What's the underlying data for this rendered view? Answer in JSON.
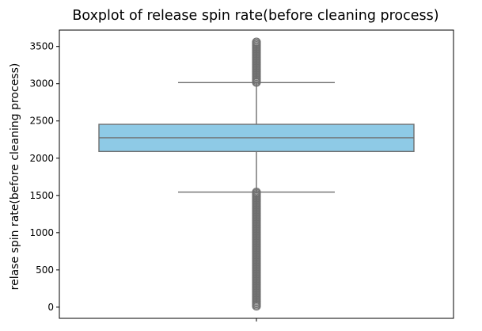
{
  "chart_data": {
    "type": "boxplot",
    "title": "Boxplot of release spin rate(before cleaning process)",
    "xlabel": "",
    "ylabel": "relase spin rate(before cleaning process)",
    "ylim": [
      -150,
      3720
    ],
    "yticks": [
      0,
      500,
      1000,
      1500,
      2000,
      2500,
      3000,
      3500
    ],
    "ytick_labels": [
      "0",
      "500",
      "1000",
      "1500",
      "2000",
      "2500",
      "3000",
      "3500"
    ],
    "grid": false,
    "box": {
      "q1": 2090,
      "median": 2275,
      "q3": 2455,
      "whisker_low": 1545,
      "whisker_high": 3015
    },
    "outliers": {
      "low_range": [
        5,
        1545
      ],
      "high_range": [
        3015,
        3560
      ]
    },
    "colors": {
      "box_fill": "#8ecae6",
      "box_edge": "#6e6e6e",
      "outlier": "#6e6e6e",
      "axes": "#000000"
    }
  }
}
